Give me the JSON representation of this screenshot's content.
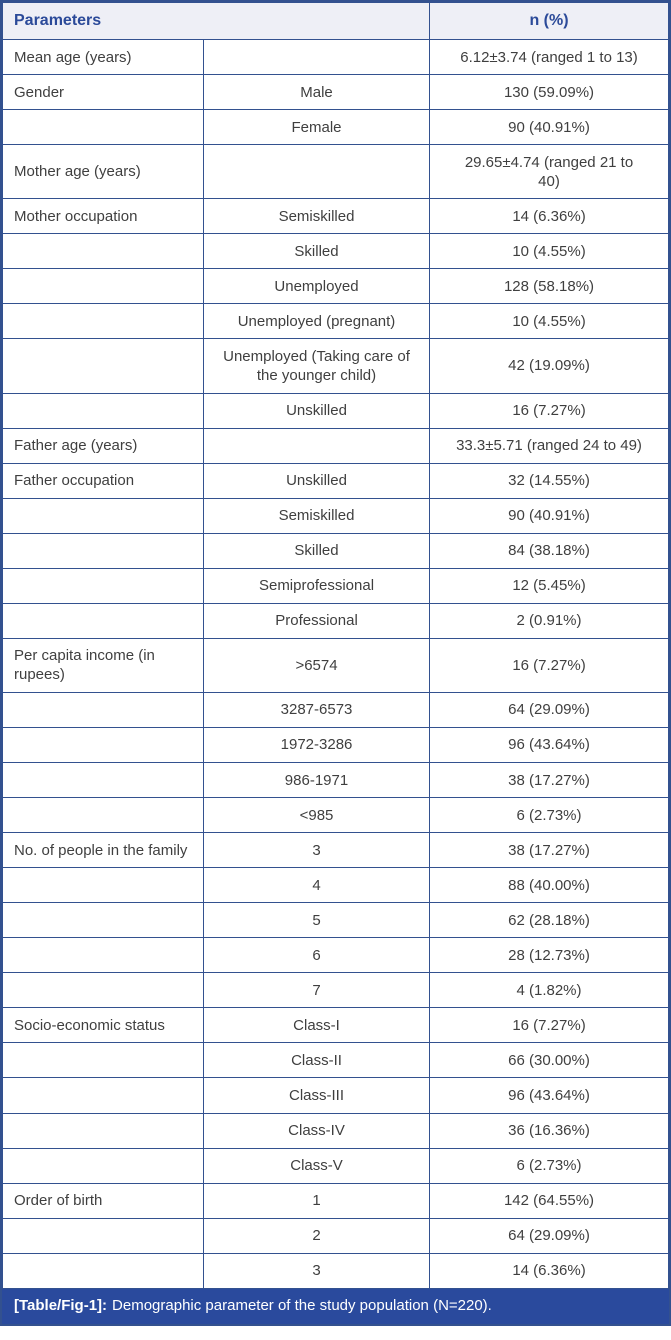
{
  "header": {
    "col_parameters": "Parameters",
    "col_n": "n (%)"
  },
  "rows": [
    {
      "parameter": "Mean age (years)",
      "category": "",
      "value": "6.12±3.74 (ranged 1 to 13)"
    },
    {
      "parameter": "Gender",
      "category": "Male",
      "value": "130 (59.09%)"
    },
    {
      "parameter": "",
      "category": "Female",
      "value": "90 (40.91%)"
    },
    {
      "parameter": "Mother age (years)",
      "category": "",
      "value": "29.65±4.74 (ranged 21 to 40)"
    },
    {
      "parameter": "Mother occupation",
      "category": "Semiskilled",
      "value": "14 (6.36%)"
    },
    {
      "parameter": "",
      "category": "Skilled",
      "value": "10 (4.55%)"
    },
    {
      "parameter": "",
      "category": "Unemployed",
      "value": "128 (58.18%)"
    },
    {
      "parameter": "",
      "category": "Unemployed (pregnant)",
      "value": "10 (4.55%)"
    },
    {
      "parameter": "",
      "category": "Unemployed (Taking care of the younger child)",
      "value": "42 (19.09%)"
    },
    {
      "parameter": "",
      "category": "Unskilled",
      "value": "16 (7.27%)"
    },
    {
      "parameter": "Father age (years)",
      "category": "",
      "value": "33.3±5.71 (ranged 24 to 49)"
    },
    {
      "parameter": "Father occupation",
      "category": "Unskilled",
      "value": "32 (14.55%)"
    },
    {
      "parameter": "",
      "category": "Semiskilled",
      "value": "90 (40.91%)"
    },
    {
      "parameter": "",
      "category": "Skilled",
      "value": "84 (38.18%)"
    },
    {
      "parameter": "",
      "category": "Semiprofessional",
      "value": "12 (5.45%)"
    },
    {
      "parameter": "",
      "category": "Professional",
      "value": "2 (0.91%)"
    },
    {
      "parameter": "Per capita income (in rupees)",
      "category": ">6574",
      "value": "16 (7.27%)"
    },
    {
      "parameter": "",
      "category": "3287-6573",
      "value": "64 (29.09%)"
    },
    {
      "parameter": "",
      "category": "1972-3286",
      "value": "96 (43.64%)"
    },
    {
      "parameter": "",
      "category": "986-1971",
      "value": "38 (17.27%)"
    },
    {
      "parameter": "",
      "category": "<985",
      "value": "6 (2.73%)"
    },
    {
      "parameter": "No. of people in the family",
      "category": "3",
      "value": "38 (17.27%)"
    },
    {
      "parameter": "",
      "category": "4",
      "value": "88 (40.00%)"
    },
    {
      "parameter": "",
      "category": "5",
      "value": "62 (28.18%)"
    },
    {
      "parameter": "",
      "category": "6",
      "value": "28 (12.73%)"
    },
    {
      "parameter": "",
      "category": "7",
      "value": "4 (1.82%)"
    },
    {
      "parameter": "Socio-economic status",
      "category": "Class-I",
      "value": "16 (7.27%)"
    },
    {
      "parameter": "",
      "category": "Class-II",
      "value": "66 (30.00%)"
    },
    {
      "parameter": "",
      "category": "Class-III",
      "value": "96 (43.64%)"
    },
    {
      "parameter": "",
      "category": "Class-IV",
      "value": "36 (16.36%)"
    },
    {
      "parameter": "",
      "category": "Class-V",
      "value": "6 (2.73%)"
    },
    {
      "parameter": "Order of birth",
      "category": "1",
      "value": "142 (64.55%)"
    },
    {
      "parameter": "",
      "category": "2",
      "value": "64 (29.09%)"
    },
    {
      "parameter": "",
      "category": "3",
      "value": "14 (6.36%)"
    }
  ],
  "caption": {
    "tag": "[Table/Fig-1]:",
    "text": "Demographic parameter of the study population (N=220)."
  },
  "colors": {
    "border": "#33518f",
    "header_bg": "#eeeff6",
    "header_text": "#2b4a99",
    "body_text": "#3f3f3f",
    "caption_bg": "#2a4a9d",
    "caption_text": "#ffffff"
  }
}
